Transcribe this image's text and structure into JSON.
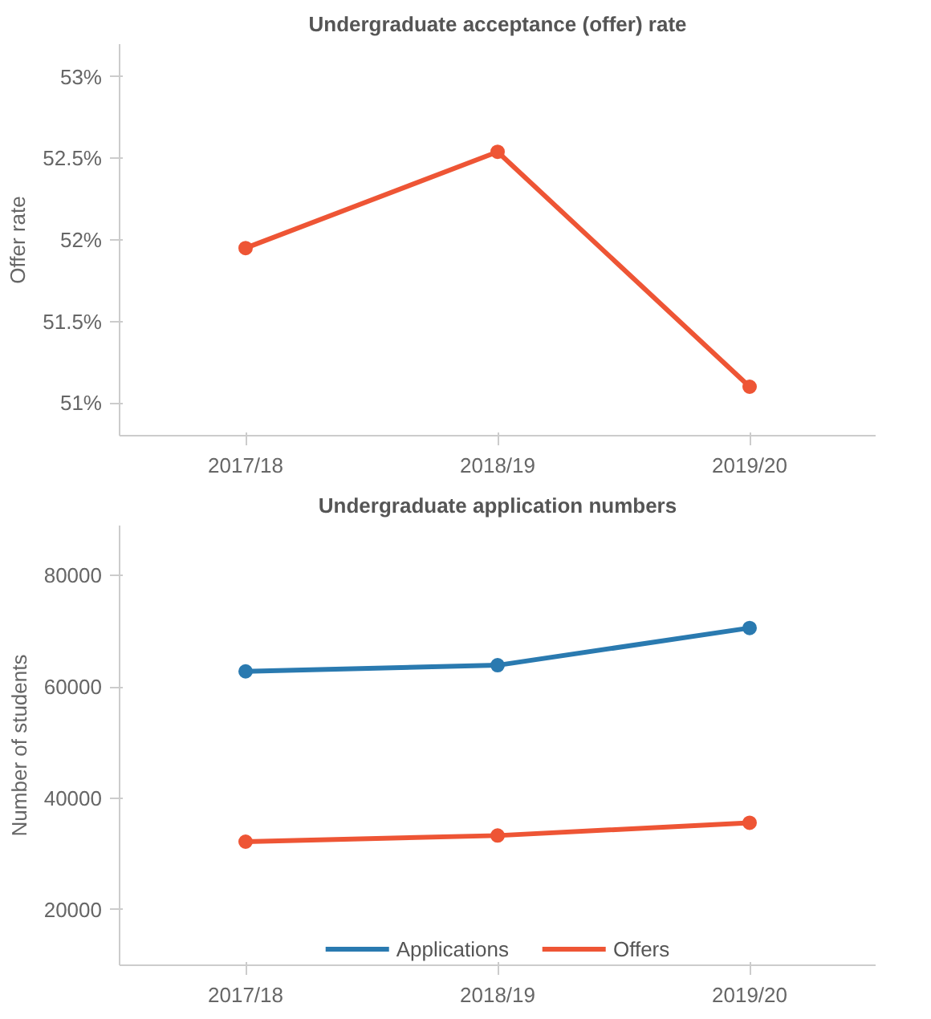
{
  "chart_data": [
    {
      "type": "line",
      "title": "Undergraduate acceptance (offer) rate",
      "ylabel": "Offer rate",
      "categories": [
        "2017/18",
        "2018/19",
        "2019/20"
      ],
      "ylim": [
        50.8,
        53.2
      ],
      "yticks": [
        {
          "value": 51,
          "label": "51%"
        },
        {
          "value": 51.5,
          "label": "51.5%"
        },
        {
          "value": 52,
          "label": "52%"
        },
        {
          "value": 52.5,
          "label": "52.5%"
        },
        {
          "value": 53,
          "label": "53%"
        }
      ],
      "marker": "circle",
      "series": [
        {
          "color": "#ee5535",
          "values": [
            51.95,
            52.54,
            51.1
          ]
        }
      ]
    },
    {
      "type": "line",
      "title": "Undergraduate application numbers",
      "ylabel": "Number of students",
      "categories": [
        "2017/18",
        "2018/19",
        "2019/20"
      ],
      "ylim": [
        10000,
        89000
      ],
      "yticks": [
        20000,
        40000,
        60000,
        80000
      ],
      "marker": "circle",
      "legend": "bottom",
      "series": [
        {
          "name": "Applications",
          "color": "#2a7ab0",
          "values": [
            62800,
            63900,
            70600
          ]
        },
        {
          "name": "Offers",
          "color": "#ee5535",
          "values": [
            32200,
            33300,
            35600
          ]
        }
      ]
    }
  ]
}
